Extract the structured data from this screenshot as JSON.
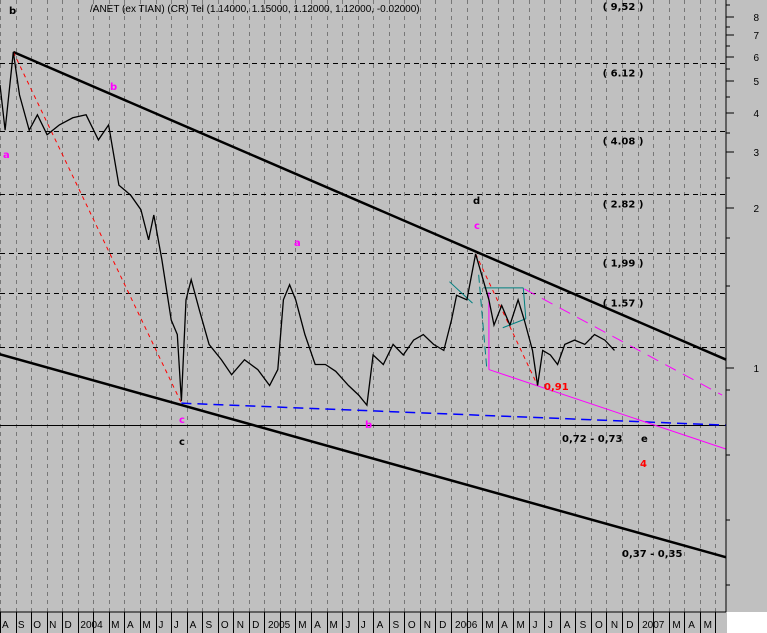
{
  "header": {
    "corner_label": "b",
    "title": "/ANET (ex TIAN) (CR) Tel (1.14000, 1.15000, 1.12000, 1.12000, -0.02000)"
  },
  "colors": {
    "background": "#c0c0c0",
    "price": "#000000",
    "trendline": "#000000",
    "red_dashed": "#ff0000",
    "blue_dashed": "#0000ff",
    "magenta": "#ff00ff",
    "teal": "#008080",
    "red_text": "#ff0000"
  },
  "chart_data": {
    "type": "line",
    "y_scale": "log",
    "grid": "vertical dashed at month starts; horizontal dashed at level lines",
    "x_ticks": [
      {
        "month": "2003-08",
        "label": "A"
      },
      {
        "month": "2003-09",
        "label": "S"
      },
      {
        "month": "2003-10",
        "label": "O"
      },
      {
        "month": "2003-11",
        "label": "N"
      },
      {
        "month": "2003-12",
        "label": "D"
      },
      {
        "month": "2004-01",
        "label": "2004"
      },
      {
        "month": "2004-03",
        "label": "M"
      },
      {
        "month": "2004-04",
        "label": "A"
      },
      {
        "month": "2004-05",
        "label": "M"
      },
      {
        "month": "2004-06",
        "label": "J"
      },
      {
        "month": "2004-07",
        "label": "J"
      },
      {
        "month": "2004-08",
        "label": "A"
      },
      {
        "month": "2004-09",
        "label": "S"
      },
      {
        "month": "2004-10",
        "label": "O"
      },
      {
        "month": "2004-11",
        "label": "N"
      },
      {
        "month": "2004-12",
        "label": "D"
      },
      {
        "month": "2005-01",
        "label": "2005"
      },
      {
        "month": "2005-03",
        "label": "M"
      },
      {
        "month": "2005-04",
        "label": "A"
      },
      {
        "month": "2005-05",
        "label": "M"
      },
      {
        "month": "2005-06",
        "label": "J"
      },
      {
        "month": "2005-07",
        "label": "J"
      },
      {
        "month": "2005-08",
        "label": "A"
      },
      {
        "month": "2005-09",
        "label": "S"
      },
      {
        "month": "2005-10",
        "label": "O"
      },
      {
        "month": "2005-11",
        "label": "N"
      },
      {
        "month": "2005-12",
        "label": "D"
      },
      {
        "month": "2006-01",
        "label": "2006"
      },
      {
        "month": "2006-03",
        "label": "M"
      },
      {
        "month": "2006-04",
        "label": "A"
      },
      {
        "month": "2006-05",
        "label": "M"
      },
      {
        "month": "2006-06",
        "label": "J"
      },
      {
        "month": "2006-07",
        "label": "J"
      },
      {
        "month": "2006-08",
        "label": "A"
      },
      {
        "month": "2006-09",
        "label": "S"
      },
      {
        "month": "2006-10",
        "label": "O"
      },
      {
        "month": "2006-11",
        "label": "N"
      },
      {
        "month": "2006-12",
        "label": "D"
      },
      {
        "month": "2007-01",
        "label": "2007"
      },
      {
        "month": "2007-03",
        "label": "M"
      },
      {
        "month": "2007-04",
        "label": "A"
      },
      {
        "month": "2007-05",
        "label": "M"
      }
    ],
    "y_ticks": [
      "8",
      "7",
      "6",
      "5",
      "4",
      "3",
      "2",
      "1"
    ],
    "series": [
      {
        "values": [
          [
            "2003-08-01",
            5.37
          ],
          [
            "2003-08-11",
            4.11
          ],
          [
            "2003-08-27",
            6.52
          ],
          [
            "2003-09-08",
            5.06
          ],
          [
            "2003-09-27",
            4.11
          ],
          [
            "2003-10-13",
            4.5
          ],
          [
            "2003-11-01",
            4.0
          ],
          [
            "2003-11-25",
            4.24
          ],
          [
            "2003-12-21",
            4.42
          ],
          [
            "2004-01-16",
            4.5
          ],
          [
            "2004-02-09",
            3.88
          ],
          [
            "2004-02-29",
            4.24
          ],
          [
            "2004-03-20",
            2.97
          ],
          [
            "2004-04-12",
            2.8
          ],
          [
            "2004-05-02",
            2.57
          ],
          [
            "2004-05-17",
            2.15
          ],
          [
            "2004-05-27",
            2.49
          ],
          [
            "2004-06-12",
            1.91
          ],
          [
            "2004-06-30",
            1.34
          ],
          [
            "2004-07-12",
            1.23
          ],
          [
            "2004-07-20",
            0.83
          ],
          [
            "2004-07-29",
            1.51
          ],
          [
            "2004-08-08",
            1.7
          ],
          [
            "2004-08-24",
            1.42
          ],
          [
            "2004-09-12",
            1.16
          ],
          [
            "2004-10-06",
            1.06
          ],
          [
            "2004-10-26",
            0.97
          ],
          [
            "2004-11-20",
            1.06
          ],
          [
            "2004-12-16",
            1.0
          ],
          [
            "2005-01-08",
            0.91
          ],
          [
            "2005-01-24",
            1.0
          ],
          [
            "2005-02-04",
            1.51
          ],
          [
            "2005-02-16",
            1.65
          ],
          [
            "2005-02-28",
            1.51
          ],
          [
            "2005-03-18",
            1.23
          ],
          [
            "2005-04-07",
            1.03
          ],
          [
            "2005-04-27",
            1.03
          ],
          [
            "2005-05-17",
            0.99
          ],
          [
            "2005-06-11",
            0.91
          ],
          [
            "2005-07-01",
            0.86
          ],
          [
            "2005-07-17",
            0.81
          ],
          [
            "2005-07-29",
            1.09
          ],
          [
            "2005-08-18",
            1.03
          ],
          [
            "2005-09-06",
            1.16
          ],
          [
            "2005-09-26",
            1.09
          ],
          [
            "2005-10-16",
            1.19
          ],
          [
            "2005-11-04",
            1.23
          ],
          [
            "2005-11-24",
            1.16
          ],
          [
            "2005-12-14",
            1.12
          ],
          [
            "2005-12-29",
            1.34
          ],
          [
            "2006-01-08",
            1.55
          ],
          [
            "2006-01-28",
            1.51
          ],
          [
            "2006-02-14",
            1.98
          ],
          [
            "2006-02-26",
            1.75
          ],
          [
            "2006-03-12",
            1.51
          ],
          [
            "2006-03-22",
            1.3
          ],
          [
            "2006-04-06",
            1.46
          ],
          [
            "2006-04-22",
            1.3
          ],
          [
            "2006-05-08",
            1.51
          ],
          [
            "2006-05-20",
            1.34
          ],
          [
            "2006-06-05",
            1.12
          ],
          [
            "2006-06-15",
            0.91
          ],
          [
            "2006-06-25",
            1.12
          ],
          [
            "2006-07-10",
            1.09
          ],
          [
            "2006-07-24",
            1.03
          ],
          [
            "2006-08-07",
            1.16
          ],
          [
            "2006-08-26",
            1.19
          ],
          [
            "2006-09-15",
            1.16
          ],
          [
            "2006-10-04",
            1.23
          ],
          [
            "2006-10-24",
            1.19
          ],
          [
            "2006-11-12",
            1.12
          ]
        ]
      }
    ],
    "levels": [
      {
        "value": 9.52,
        "label": "( 9,52 )",
        "style": "dashed"
      },
      {
        "value": 6.12,
        "label": "( 6.12 )",
        "style": "dashed"
      },
      {
        "value": 4.08,
        "label": "( 4.08 )",
        "style": "dashed"
      },
      {
        "value": 2.82,
        "label": "( 2.82 )",
        "style": "dashed"
      },
      {
        "value": 1.99,
        "label": "( 1,99 )",
        "style": "dashed"
      },
      {
        "value": 1.57,
        "label": "( 1.57 )",
        "style": "dashed"
      },
      {
        "value": 1.14,
        "label": "",
        "style": "dashed"
      },
      {
        "value": 0.72,
        "label": "",
        "style": "solid"
      }
    ],
    "lines": [
      {
        "name": "upper-trendline",
        "color": "#000000",
        "dash": "solid",
        "width": 2.5,
        "from": [
          "2003-08-27",
          6.52
        ],
        "to": [
          "2007-06-18",
          1.06
        ]
      },
      {
        "name": "lower-trendline",
        "color": "#000000",
        "dash": "solid",
        "width": 2.5,
        "from": [
          "2003-07-26",
          1.1
        ],
        "to": [
          "2007-06-18",
          0.33
        ]
      },
      {
        "name": "red-dashed-1",
        "color": "#ff0000",
        "dash": "4,4",
        "width": 1,
        "from": [
          "2003-08-27",
          6.52
        ],
        "to": [
          "2004-07-20",
          0.82
        ]
      },
      {
        "name": "red-dashed-2",
        "color": "#ff0000",
        "dash": "4,4",
        "width": 1,
        "from": [
          "2006-02-14",
          1.98
        ],
        "to": [
          "2006-06-15",
          0.91
        ]
      },
      {
        "name": "blue-dashed",
        "color": "#0000ff",
        "dash": "10,6",
        "width": 1.5,
        "from": [
          "2004-07-20",
          0.82
        ],
        "to": [
          "2007-06-18",
          0.72
        ]
      },
      {
        "name": "magenta-solid",
        "color": "#ff00ff",
        "dash": "solid",
        "width": 1,
        "from": [
          "2006-03-12",
          1.0
        ],
        "to": [
          "2007-06-18",
          0.625
        ]
      },
      {
        "name": "magenta-dashed",
        "color": "#ff00ff",
        "dash": "12,8",
        "width": 1,
        "from": [
          "2006-05-20",
          1.61
        ],
        "to": [
          "2007-06-10",
          0.86
        ]
      },
      {
        "name": "magenta-vertical",
        "color": "#ff00ff",
        "dash": "solid",
        "width": 1,
        "from": [
          "2006-03-12",
          1.58
        ],
        "to": [
          "2006-03-12",
          1.0
        ]
      },
      {
        "name": "teal-1",
        "color": "#008080",
        "dash": "solid",
        "width": 1,
        "from": [
          "2006-03-01",
          1.62
        ],
        "to": [
          "2006-05-18",
          1.62
        ]
      },
      {
        "name": "teal-2",
        "color": "#008080",
        "dash": "solid",
        "width": 1,
        "from": [
          "2006-05-18",
          1.62
        ],
        "to": [
          "2006-05-23",
          1.35
        ]
      },
      {
        "name": "teal-3",
        "color": "#008080",
        "dash": "solid",
        "width": 1,
        "from": [
          "2006-05-23",
          1.35
        ],
        "to": [
          "2006-04-08",
          1.28
        ]
      },
      {
        "name": "teal-4",
        "color": "#008080",
        "dash": "8,4",
        "width": 1,
        "from": [
          "2006-02-20",
          1.75
        ],
        "to": [
          "2006-03-08",
          1.0
        ]
      },
      {
        "name": "teal-5",
        "color": "#008080",
        "dash": "solid",
        "width": 1,
        "from": [
          "2005-12-25",
          1.68
        ],
        "to": [
          "2006-02-08",
          1.48
        ]
      }
    ],
    "annotations": [
      {
        "text": "a",
        "color": "#ff00ff"
      },
      {
        "text": "b",
        "color": "#ff00ff"
      },
      {
        "text": "c",
        "color": "#ff00ff"
      },
      {
        "text": "c",
        "color": "#000000"
      },
      {
        "text": "a",
        "color": "#ff00ff"
      },
      {
        "text": "b",
        "color": "#ff00ff"
      },
      {
        "text": "d",
        "color": "#000000"
      },
      {
        "text": "c",
        "color": "#ff00ff"
      },
      {
        "text": "0,91",
        "color": "#ff0000"
      },
      {
        "text": "0,72 - 0,73",
        "color": "#000000"
      },
      {
        "text": "e",
        "color": "#000000"
      },
      {
        "text": "4",
        "color": "#ff0000"
      },
      {
        "text": "0,37 - 0,35",
        "color": "#000000"
      }
    ]
  }
}
